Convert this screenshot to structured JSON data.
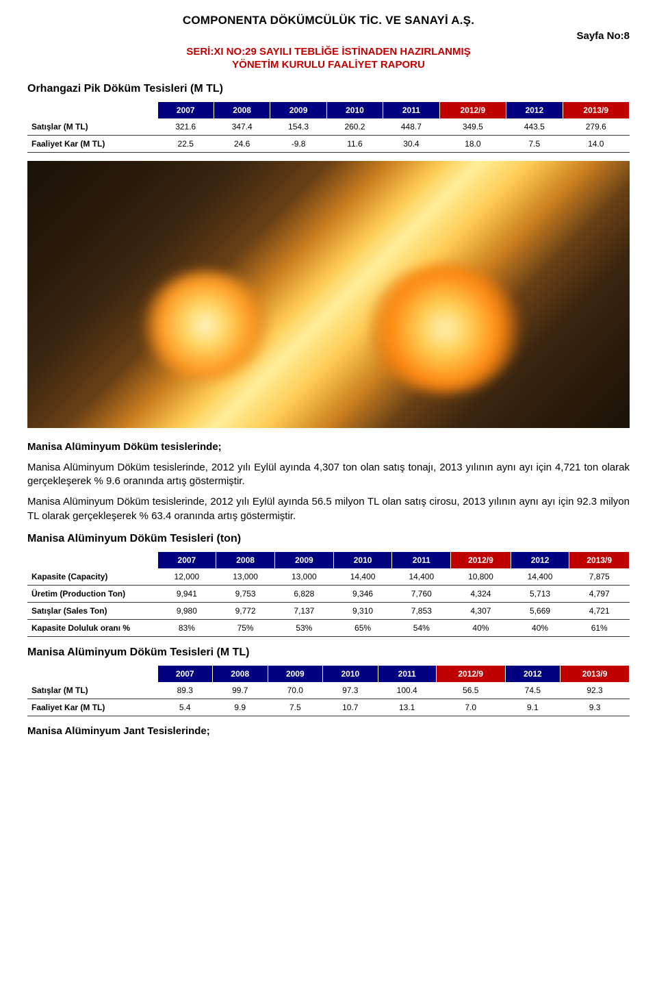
{
  "header": {
    "company": "COMPONENTA DÖKÜMCÜLÜK TİC. VE SANAYİ A.Ş.",
    "page_no": "Sayfa No:8",
    "sub_line1": "SERİ:XI NO:29 SAYILI TEBLİĞE İSTİNADEN HAZIRLANMIŞ",
    "sub_line2": "YÖNETİM KURULU FAALİYET RAPORU"
  },
  "colors": {
    "header_blue": "#000080",
    "header_red": "#c00000",
    "text_black": "#000000"
  },
  "section1": {
    "title": "Orhangazi Pik Döküm Tesisleri (M TL)"
  },
  "table1": {
    "headers": [
      "",
      "2007",
      "2008",
      "2009",
      "2010",
      "2011",
      "2012/9",
      "2012",
      "2013/9"
    ],
    "header_red_flags": [
      false,
      false,
      false,
      false,
      false,
      false,
      true,
      false,
      true
    ],
    "rows": [
      [
        "Satışlar (M TL)",
        "321.6",
        "347.4",
        "154.3",
        "260.2",
        "448.7",
        "349.5",
        "443.5",
        "279.6"
      ],
      [
        "Faaliyet Kar (M TL)",
        "22.5",
        "24.6",
        "-9.8",
        "11.6",
        "30.4",
        "18.0",
        "7.5",
        "14.0"
      ]
    ]
  },
  "section2": {
    "heading": "Manisa Alüminyum Döküm tesislerinde;",
    "para1": "Manisa Alüminyum Döküm tesislerinde, 2012 yılı Eylül ayında 4,307 ton olan satış tonajı, 2013 yılının aynı ayı için 4,721 ton olarak gerçekleşerek % 9.6 oranında artış göstermiştir.",
    "para2": "Manisa Alüminyum Döküm tesislerinde, 2012 yılı Eylül ayında 56.5 milyon TL olan satış cirosu, 2013 yılının aynı ayı için 92.3 milyon TL olarak gerçekleşerek % 63.4 oranında artış göstermiştir."
  },
  "section3": {
    "title": "Manisa Alüminyum Döküm Tesisleri (ton)"
  },
  "table2": {
    "headers": [
      "",
      "2007",
      "2008",
      "2009",
      "2010",
      "2011",
      "2012/9",
      "2012",
      "2013/9"
    ],
    "header_red_flags": [
      false,
      false,
      false,
      false,
      false,
      false,
      true,
      false,
      true
    ],
    "rows": [
      [
        "Kapasite (Capacity)",
        "12,000",
        "13,000",
        "13,000",
        "14,400",
        "14,400",
        "10,800",
        "14,400",
        "7,875"
      ],
      [
        "Üretim (Production Ton)",
        "9,941",
        "9,753",
        "6,828",
        "9,346",
        "7,760",
        "4,324",
        "5,713",
        "4,797"
      ],
      [
        "Satışlar (Sales Ton)",
        "9,980",
        "9,772",
        "7,137",
        "9,310",
        "7,853",
        "4,307",
        "5,669",
        "4,721"
      ],
      [
        "Kapasite Doluluk oranı %",
        "83%",
        "75%",
        "53%",
        "65%",
        "54%",
        "40%",
        "40%",
        "61%"
      ]
    ]
  },
  "section4": {
    "title": "Manisa Alüminyum Döküm Tesisleri (M TL)"
  },
  "table3": {
    "headers": [
      "",
      "2007",
      "2008",
      "2009",
      "2010",
      "2011",
      "2012/9",
      "2012",
      "2013/9"
    ],
    "header_red_flags": [
      false,
      false,
      false,
      false,
      false,
      false,
      true,
      false,
      true
    ],
    "rows": [
      [
        "Satışlar (M TL)",
        "89.3",
        "99.7",
        "70.0",
        "97.3",
        "100.4",
        "56.5",
        "74.5",
        "92.3"
      ],
      [
        "Faaliyet Kar (M TL)",
        "5.4",
        "9.9",
        "7.5",
        "10.7",
        "13.1",
        "7.0",
        "9.1",
        "9.3"
      ]
    ]
  },
  "section5": {
    "heading": "Manisa Alüminyum Jant Tesislerinde;"
  }
}
